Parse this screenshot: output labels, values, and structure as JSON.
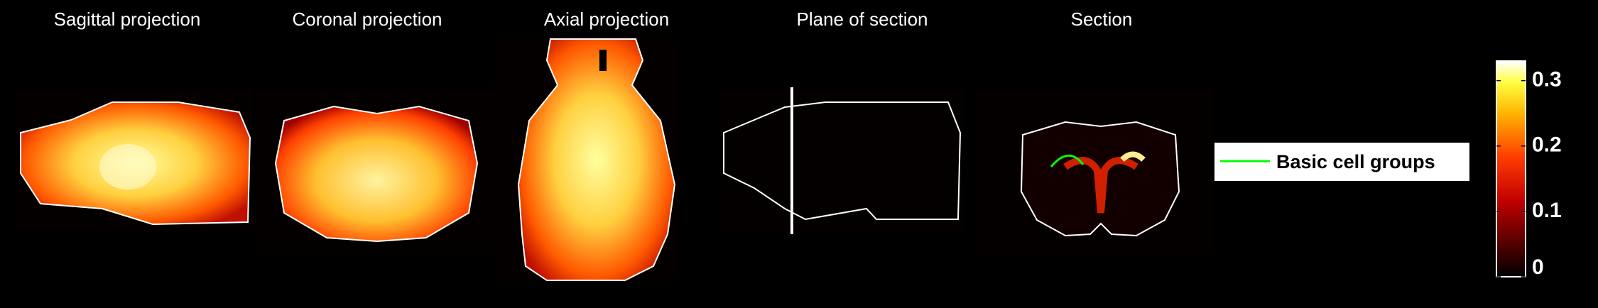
{
  "panels": [
    {
      "title": "Sagittal projection"
    },
    {
      "title": "Coronal projection"
    },
    {
      "title": "Axial projection"
    },
    {
      "title": "Plane of section"
    },
    {
      "title": "Section"
    }
  ],
  "legend": {
    "label": "Basic cell groups",
    "color": "#00ff00"
  },
  "colorbar": {
    "lim": [
      0,
      0.33
    ],
    "ticks": [
      0,
      0.1,
      0.2,
      0.3
    ]
  }
}
